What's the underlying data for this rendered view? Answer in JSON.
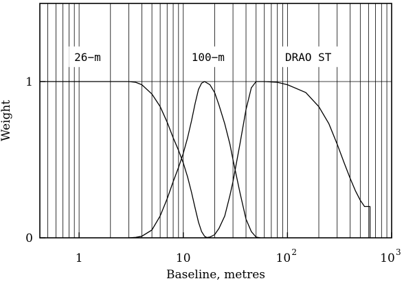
{
  "chart_data": {
    "type": "line",
    "xlabel": "Baseline, metres",
    "ylabel": "Weight",
    "xscale": "log",
    "xlim": [
      0.42,
      1000
    ],
    "ylim": [
      0,
      1.5
    ],
    "grid": {
      "x": "log-minor",
      "y": [
        1
      ]
    },
    "xticks": [
      {
        "value": 1,
        "base": "1",
        "exp": ""
      },
      {
        "value": 10,
        "base": "10",
        "exp": ""
      },
      {
        "value": 100,
        "base": "10",
        "exp": "2"
      },
      {
        "value": 1000,
        "base": "10",
        "exp": "3"
      }
    ],
    "yticks": [
      {
        "value": 0,
        "label": "0"
      },
      {
        "value": 1,
        "label": "1"
      }
    ],
    "annotations": [
      {
        "text": "26−m",
        "x": 0.9,
        "y": 1.15
      },
      {
        "text": "100−m",
        "x": 12,
        "y": 1.15
      },
      {
        "text": "DRAO ST",
        "x": 95,
        "y": 1.15
      }
    ],
    "series": [
      {
        "x": [
          0.42,
          1,
          3,
          3.5,
          4,
          5,
          6,
          7,
          8,
          9,
          10,
          11,
          12,
          13,
          14,
          15,
          16,
          17
        ],
        "y": [
          1,
          1,
          1,
          0.995,
          0.98,
          0.92,
          0.84,
          0.74,
          0.64,
          0.56,
          0.48,
          0.39,
          0.29,
          0.19,
          0.1,
          0.04,
          0.01,
          0
        ]
      },
      {
        "x": [
          3,
          3.5,
          4,
          5,
          6,
          7,
          8,
          9,
          10,
          11,
          12,
          13,
          14,
          15,
          16,
          18,
          20,
          22,
          25,
          28,
          30,
          35,
          40,
          45,
          50,
          55
        ],
        "y": [
          0,
          0.003,
          0.01,
          0.05,
          0.14,
          0.25,
          0.36,
          0.45,
          0.54,
          0.64,
          0.75,
          0.86,
          0.95,
          0.99,
          1,
          0.98,
          0.93,
          0.85,
          0.73,
          0.6,
          0.5,
          0.29,
          0.12,
          0.04,
          0.005,
          0
        ]
      },
      {
        "x": [
          16,
          18,
          20,
          22,
          25,
          28,
          30,
          35,
          40,
          45,
          50,
          55,
          60,
          80,
          100,
          150,
          200,
          250,
          300,
          350,
          400,
          450,
          500,
          550,
          620,
          620
        ],
        "y": [
          0,
          0.005,
          0.02,
          0.06,
          0.14,
          0.27,
          0.36,
          0.6,
          0.82,
          0.96,
          1,
          1,
          1,
          0.995,
          0.98,
          0.93,
          0.84,
          0.73,
          0.6,
          0.48,
          0.38,
          0.3,
          0.24,
          0.2,
          0.2,
          0
        ]
      }
    ]
  }
}
